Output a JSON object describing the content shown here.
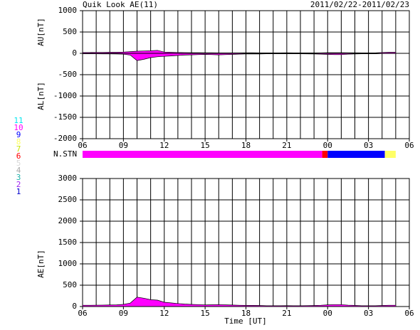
{
  "chart_data": [
    {
      "type": "area",
      "title": "Quik Look AE(11)",
      "subtitle": "2011/02/22-2011/02/23",
      "x": [
        0,
        0.5,
        1,
        1.5,
        2,
        2.5,
        3,
        3.5,
        4,
        4.5,
        5,
        5.5,
        6,
        6.5,
        7,
        7.5,
        8,
        8.5,
        9,
        9.5,
        10,
        10.5,
        11,
        11.5,
        12,
        12.5,
        13,
        13.5,
        14,
        14.5,
        15,
        15.5,
        16,
        16.5,
        17,
        17.5,
        18,
        18.5,
        19,
        19.5,
        20,
        20.5,
        21,
        21.5,
        22,
        22.5,
        23
      ],
      "series": [
        {
          "name": "AU[nT]",
          "color": "#ff00ff",
          "values": [
            20,
            20,
            22,
            22,
            25,
            25,
            30,
            40,
            50,
            55,
            60,
            70,
            30,
            25,
            20,
            18,
            15,
            15,
            12,
            12,
            10,
            10,
            10,
            10,
            12,
            12,
            10,
            10,
            10,
            10,
            12,
            10,
            10,
            10,
            10,
            10,
            15,
            15,
            15,
            12,
            12,
            10,
            10,
            10,
            20,
            25,
            25
          ]
        },
        {
          "name": "AL[nT]",
          "color": "#ff00ff",
          "values": [
            -10,
            -10,
            -10,
            -12,
            -12,
            -15,
            -20,
            -40,
            -170,
            -140,
            -100,
            -80,
            -70,
            -60,
            -50,
            -40,
            -35,
            -30,
            -25,
            -30,
            -35,
            -30,
            -25,
            -20,
            -15,
            -15,
            -15,
            -10,
            -10,
            -10,
            -10,
            -10,
            -10,
            -12,
            -15,
            -20,
            -25,
            -30,
            -30,
            -20,
            -15,
            -10,
            -10,
            -10,
            -5,
            -5,
            -5
          ]
        }
      ],
      "xlim": [
        0,
        24
      ],
      "xticks": [
        {
          "value": 0,
          "label": "06"
        },
        {
          "value": 3,
          "label": "09"
        },
        {
          "value": 6,
          "label": "12"
        },
        {
          "value": 9,
          "label": "15"
        },
        {
          "value": 12,
          "label": "18"
        },
        {
          "value": 15,
          "label": "21"
        },
        {
          "value": 18,
          "label": "00"
        },
        {
          "value": 21,
          "label": "03"
        },
        {
          "value": 24,
          "label": "06"
        }
      ],
      "xgrid": [
        1,
        2,
        4,
        5,
        7,
        8,
        10,
        11,
        13,
        14,
        16,
        17,
        19,
        20,
        22,
        23
      ],
      "ylim": [
        -2000,
        1000
      ],
      "yticks": [
        -2000,
        -1500,
        -1000,
        -500,
        0,
        500,
        1000
      ],
      "grid": true
    },
    {
      "type": "station-bar",
      "label": "N.STN",
      "xlim": [
        0,
        24
      ],
      "segments": [
        {
          "start": 0,
          "end": 17.6,
          "value": 10
        },
        {
          "start": 17.6,
          "end": 18,
          "value": 6
        },
        {
          "start": 18,
          "end": 22.2,
          "value": 9
        },
        {
          "start": 22.2,
          "end": 23,
          "value": 8
        }
      ],
      "legend": [
        {
          "value": 11,
          "color": "#00e5ee"
        },
        {
          "value": 10,
          "color": "#ff00ff"
        },
        {
          "value": 9,
          "color": "#0000ff"
        },
        {
          "value": 8,
          "color": "#ffff66"
        },
        {
          "value": 7,
          "color": "#c8e600"
        },
        {
          "value": 6,
          "color": "#ff0000"
        },
        {
          "value": 5,
          "color": "#d8d8d8"
        },
        {
          "value": 4,
          "color": "#a8a8a8"
        },
        {
          "value": 3,
          "color": "#20b2aa"
        },
        {
          "value": 2,
          "color": "#a020f0"
        },
        {
          "value": 1,
          "color": "#0000cd"
        }
      ]
    },
    {
      "type": "area",
      "xlabel": "Time [UT]",
      "x": [
        0,
        0.5,
        1,
        1.5,
        2,
        2.5,
        3,
        3.5,
        4,
        4.5,
        5,
        5.5,
        6,
        6.5,
        7,
        7.5,
        8,
        8.5,
        9,
        9.5,
        10,
        10.5,
        11,
        11.5,
        12,
        12.5,
        13,
        13.5,
        14,
        14.5,
        15,
        15.5,
        16,
        16.5,
        17,
        17.5,
        18,
        18.5,
        19,
        19.5,
        20,
        20.5,
        21,
        21.5,
        22,
        22.5,
        23
      ],
      "series": [
        {
          "name": "AE[nT]",
          "color": "#ff00ff",
          "values": [
            30,
            30,
            32,
            34,
            37,
            40,
            50,
            80,
            220,
            195,
            160,
            150,
            100,
            85,
            70,
            58,
            50,
            45,
            37,
            42,
            45,
            40,
            35,
            30,
            27,
            27,
            25,
            20,
            20,
            20,
            22,
            20,
            20,
            22,
            25,
            30,
            40,
            45,
            45,
            32,
            27,
            20,
            20,
            20,
            25,
            30,
            30
          ]
        }
      ],
      "xlim": [
        0,
        24
      ],
      "xticks": [
        {
          "value": 0,
          "label": "06"
        },
        {
          "value": 3,
          "label": "09"
        },
        {
          "value": 6,
          "label": "12"
        },
        {
          "value": 9,
          "label": "15"
        },
        {
          "value": 12,
          "label": "18"
        },
        {
          "value": 15,
          "label": "21"
        },
        {
          "value": 18,
          "label": "00"
        },
        {
          "value": 21,
          "label": "03"
        },
        {
          "value": 24,
          "label": "06"
        }
      ],
      "xgrid": [
        1,
        2,
        4,
        5,
        7,
        8,
        10,
        11,
        13,
        14,
        16,
        17,
        19,
        20,
        22,
        23
      ],
      "ylim": [
        0,
        3000
      ],
      "yticks": [
        0,
        500,
        1000,
        1500,
        2000,
        2500,
        3000
      ],
      "grid": true
    }
  ]
}
